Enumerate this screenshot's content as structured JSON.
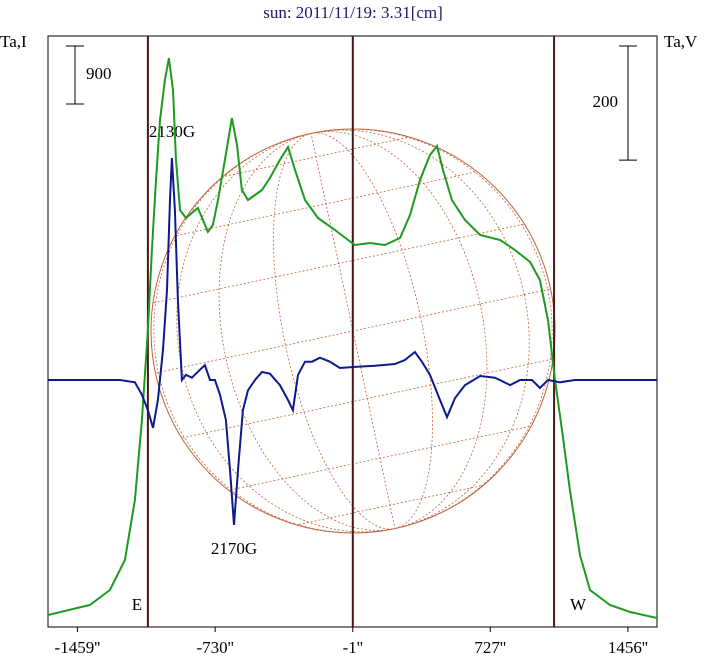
{
  "chart_data": {
    "type": "line",
    "title": "sun: 2011/11/19: 3.31[cm]",
    "ylabel": "Ta,I",
    "y2label": "Ta,V",
    "xlim": [
      -1615,
      1610
    ],
    "ylim": [
      -186,
      8986
    ],
    "y2lim": [
      -433,
      603
    ],
    "xticks": [
      {
        "value": -1459,
        "label": "-1459''"
      },
      {
        "value": -730,
        "label": "-730''"
      },
      {
        "value": -1,
        "label": "-1''"
      },
      {
        "value": 727,
        "label": "727''"
      },
      {
        "value": 1456,
        "label": "1456''"
      }
    ],
    "vlines": [
      -1086,
      -1,
      1065
    ],
    "scale_bar_left": 900,
    "scale_bar_right": 200,
    "annotations": [
      "2130G",
      "2170G",
      "E",
      "W"
    ],
    "series": [
      {
        "name": "I",
        "color": "#1e9a1e",
        "axis": "y",
        "x": [
          -1615,
          -1393,
          -1287,
          -1208,
          -1155,
          -1118,
          -1086,
          -1065,
          -1043,
          -1022,
          -996,
          -975,
          -953,
          -937,
          -916,
          -885,
          -847,
          -821,
          -794,
          -768,
          -742,
          -715,
          -678,
          -641,
          -614,
          -588,
          -556,
          -519,
          -482,
          -440,
          -387,
          -344,
          -307,
          -254,
          -185,
          -95,
          -26,
          11,
          90,
          169,
          249,
          302,
          355,
          408,
          445,
          477,
          524,
          593,
          673,
          779,
          858,
          938,
          990,
          1033,
          1070,
          1107,
          1149,
          1202,
          1255,
          1361,
          1467,
          1610
        ],
        "values": [
          0,
          155,
          388,
          854,
          1785,
          3026,
          4423,
          5665,
          6751,
          7682,
          8303,
          8645,
          8148,
          7062,
          6286,
          6161,
          6255,
          6317,
          6131,
          5944,
          6053,
          6441,
          7062,
          7713,
          7294,
          6596,
          6441,
          6518,
          6596,
          6782,
          7062,
          7263,
          6906,
          6441,
          6161,
          5975,
          5820,
          5742,
          5773,
          5742,
          5851,
          6208,
          6751,
          7139,
          7279,
          6906,
          6441,
          6131,
          5898,
          5820,
          5665,
          5479,
          5199,
          4578,
          3647,
          2871,
          1940,
          931,
          388,
          155,
          47,
          -47
        ]
      },
      {
        "name": "V",
        "color": "#0c1a8c",
        "axis": "y2",
        "x": [
          -1615,
          -1234,
          -1155,
          -1118,
          -1086,
          -1059,
          -1033,
          -1006,
          -985,
          -969,
          -959,
          -943,
          -927,
          -906,
          -885,
          -853,
          -810,
          -784,
          -757,
          -731,
          -704,
          -673,
          -651,
          -630,
          -609,
          -583,
          -556,
          -519,
          -482,
          -440,
          -387,
          -344,
          -318,
          -291,
          -254,
          -217,
          -175,
          -122,
          -69,
          11,
          117,
          222,
          275,
          328,
          365,
          408,
          450,
          498,
          540,
          593,
          673,
          752,
          832,
          885,
          948,
          990,
          1033,
          1096,
          1176,
          1361,
          1610
        ],
        "values": [
          0,
          0,
          -4,
          -26,
          -53,
          -84,
          -35,
          53,
          158,
          316,
          389,
          298,
          140,
          0,
          9,
          4,
          18,
          26,
          0,
          0,
          -26,
          -70,
          -158,
          -254,
          -158,
          -53,
          -18,
          0,
          14,
          11,
          -9,
          -35,
          -53,
          9,
          32,
          32,
          39,
          32,
          21,
          23,
          25,
          28,
          35,
          49,
          32,
          9,
          -26,
          -65,
          -32,
          -9,
          7,
          4,
          -9,
          0,
          0,
          -14,
          0,
          -4,
          0,
          0,
          0
        ]
      }
    ]
  }
}
